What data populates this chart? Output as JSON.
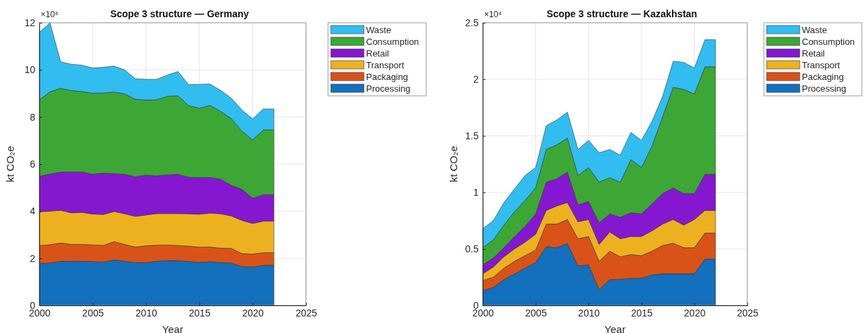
{
  "chart_data": [
    {
      "type": "area",
      "stacked": true,
      "title": "Scope 3 structure — Germany",
      "xlabel": "Year",
      "ylabel": "kt CO₂e",
      "annotations": [
        "×10⁴"
      ],
      "grid": true,
      "legend": "right",
      "x": [
        2000,
        2001,
        2002,
        2003,
        2004,
        2005,
        2006,
        2007,
        2008,
        2009,
        2010,
        2011,
        2012,
        2013,
        2014,
        2015,
        2016,
        2017,
        2018,
        2019,
        2020,
        2021,
        2022
      ],
      "xlim": [
        2000,
        2025
      ],
      "xticks": [
        2000,
        2005,
        2010,
        2015,
        2020,
        2025
      ],
      "ylim": [
        0,
        12
      ],
      "yticks": [
        0,
        2,
        4,
        6,
        8,
        10,
        12
      ],
      "series": [
        {
          "name": "Processing",
          "color": "#1270bd",
          "values": [
            1.78,
            1.8,
            1.87,
            1.88,
            1.88,
            1.86,
            1.84,
            1.93,
            1.88,
            1.82,
            1.82,
            1.88,
            1.9,
            1.9,
            1.87,
            1.82,
            1.86,
            1.82,
            1.8,
            1.65,
            1.63,
            1.7,
            1.7
          ]
        },
        {
          "name": "Packaging",
          "color": "#d95319",
          "values": [
            0.76,
            0.78,
            0.78,
            0.71,
            0.71,
            0.71,
            0.71,
            0.78,
            0.71,
            0.66,
            0.71,
            0.68,
            0.67,
            0.64,
            0.65,
            0.65,
            0.62,
            0.61,
            0.62,
            0.55,
            0.55,
            0.54,
            0.54
          ]
        },
        {
          "name": "Transport",
          "color": "#edb120",
          "values": [
            1.44,
            1.42,
            1.39,
            1.34,
            1.36,
            1.31,
            1.31,
            1.28,
            1.3,
            1.3,
            1.31,
            1.34,
            1.33,
            1.36,
            1.37,
            1.4,
            1.44,
            1.46,
            1.38,
            1.41,
            1.3,
            1.34,
            1.34
          ]
        },
        {
          "name": "Retail",
          "color": "#8517d1",
          "values": [
            1.5,
            1.58,
            1.62,
            1.74,
            1.71,
            1.69,
            1.76,
            1.61,
            1.68,
            1.68,
            1.69,
            1.6,
            1.65,
            1.67,
            1.55,
            1.56,
            1.51,
            1.47,
            1.3,
            1.32,
            1.07,
            1.12,
            1.12
          ]
        },
        {
          "name": "Consumption",
          "color": "#3da736",
          "values": [
            3.25,
            3.49,
            3.56,
            3.45,
            3.42,
            3.44,
            3.4,
            3.46,
            3.41,
            3.29,
            3.19,
            3.23,
            3.33,
            3.33,
            3.04,
            2.94,
            3.06,
            2.88,
            2.83,
            2.47,
            2.48,
            2.75,
            2.75
          ]
        },
        {
          "name": "Waste",
          "color": "#31bdf0",
          "values": [
            2.87,
            2.93,
            1.12,
            1.12,
            1.12,
            1.07,
            1.09,
            1.1,
            1.02,
            0.87,
            0.88,
            0.87,
            0.9,
            1.03,
            0.89,
            1.02,
            0.91,
            0.89,
            0.87,
            0.9,
            0.89,
            0.89,
            0.89
          ]
        }
      ]
    },
    {
      "type": "area",
      "stacked": true,
      "title": "Scope 3 structure — Kazakhstan",
      "xlabel": "Year",
      "ylabel": "kt CO₂e",
      "annotations": [
        "×10⁴"
      ],
      "grid": true,
      "legend": "right",
      "x": [
        2000,
        2001,
        2002,
        2003,
        2004,
        2005,
        2006,
        2007,
        2008,
        2009,
        2010,
        2011,
        2012,
        2013,
        2014,
        2015,
        2016,
        2017,
        2018,
        2019,
        2020,
        2021,
        2022
      ],
      "xlim": [
        2000,
        2025
      ],
      "xticks": [
        2000,
        2005,
        2010,
        2015,
        2020,
        2025
      ],
      "ylim": [
        0,
        2.5
      ],
      "yticks": [
        0,
        0.5,
        1,
        1.5,
        2,
        2.5
      ],
      "series": [
        {
          "name": "Processing",
          "color": "#1270bd",
          "values": [
            0.13,
            0.16,
            0.23,
            0.28,
            0.33,
            0.38,
            0.52,
            0.51,
            0.55,
            0.35,
            0.36,
            0.14,
            0.23,
            0.23,
            0.24,
            0.24,
            0.27,
            0.28,
            0.28,
            0.28,
            0.28,
            0.41,
            0.41
          ]
        },
        {
          "name": "Packaging",
          "color": "#d95319",
          "values": [
            0.09,
            0.09,
            0.1,
            0.11,
            0.11,
            0.11,
            0.2,
            0.21,
            0.21,
            0.24,
            0.25,
            0.25,
            0.25,
            0.2,
            0.21,
            0.2,
            0.21,
            0.25,
            0.27,
            0.23,
            0.23,
            0.23,
            0.23
          ]
        },
        {
          "name": "Transport",
          "color": "#edb120",
          "values": [
            0.06,
            0.09,
            0.1,
            0.11,
            0.12,
            0.14,
            0.12,
            0.16,
            0.15,
            0.15,
            0.15,
            0.15,
            0.17,
            0.16,
            0.16,
            0.17,
            0.18,
            0.19,
            0.21,
            0.2,
            0.25,
            0.2,
            0.2
          ]
        },
        {
          "name": "Retail",
          "color": "#8517d1",
          "values": [
            0.08,
            0.08,
            0.08,
            0.11,
            0.14,
            0.18,
            0.25,
            0.24,
            0.27,
            0.15,
            0.16,
            0.19,
            0.16,
            0.19,
            0.21,
            0.2,
            0.24,
            0.27,
            0.28,
            0.28,
            0.23,
            0.32,
            0.32
          ]
        },
        {
          "name": "Consumption",
          "color": "#3da736",
          "values": [
            0.15,
            0.16,
            0.2,
            0.22,
            0.23,
            0.23,
            0.29,
            0.3,
            0.3,
            0.26,
            0.3,
            0.36,
            0.32,
            0.31,
            0.47,
            0.41,
            0.51,
            0.68,
            0.89,
            0.92,
            0.88,
            0.95,
            0.95
          ]
        },
        {
          "name": "Waste",
          "color": "#31bdf0",
          "values": [
            0.17,
            0.17,
            0.2,
            0.2,
            0.22,
            0.18,
            0.21,
            0.22,
            0.23,
            0.23,
            0.24,
            0.26,
            0.25,
            0.24,
            0.24,
            0.24,
            0.22,
            0.18,
            0.23,
            0.24,
            0.23,
            0.24,
            0.24
          ]
        }
      ]
    }
  ]
}
